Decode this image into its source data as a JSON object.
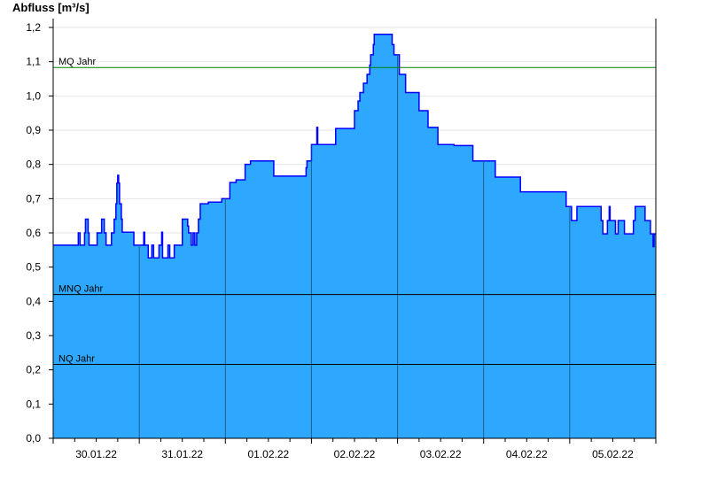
{
  "chart_data": {
    "type": "area",
    "title": "",
    "ylabel": "Abfluss [m³/s]",
    "xlabel": "",
    "ylim": [
      0,
      1.2
    ],
    "xlim": [
      "30.01.22 00:00",
      "06.02.22 00:00"
    ],
    "yticks": [
      "0,0",
      "0,1",
      "0,2",
      "0,3",
      "0,4",
      "0,5",
      "0,6",
      "0,7",
      "0,8",
      "0,9",
      "1,0",
      "1,1",
      "1,2"
    ],
    "xticks": [
      "30.01.22",
      "31.01.22",
      "01.02.22",
      "02.02.22",
      "03.02.22",
      "04.02.22",
      "05.02.22"
    ],
    "grid": true,
    "step": true,
    "colors": {
      "fill": "#2ea8ff",
      "line": "#0000ff",
      "mq": "#008000",
      "ref": "#000000",
      "dayline": "#1f5f8a"
    },
    "reference_lines": [
      {
        "label": "MQ Jahr",
        "value": 1.083,
        "color": "#008000"
      },
      {
        "label": "MNQ Jahr",
        "value": 0.42,
        "color": "#000000"
      },
      {
        "label": "NQ Jahr",
        "value": 0.216,
        "color": "#000000"
      }
    ],
    "series": [
      {
        "points": [
          [
            "30.01.22 00:00",
            0.564
          ],
          [
            "30.01.22 07:00",
            0.6
          ],
          [
            "30.01.22 07:30",
            0.564
          ],
          [
            "30.01.22 08:45",
            0.6
          ],
          [
            "30.01.22 09:00",
            0.64
          ],
          [
            "30.01.22 09:45",
            0.6
          ],
          [
            "30.01.22 10:00",
            0.564
          ],
          [
            "30.01.22 12:15",
            0.6
          ],
          [
            "30.01.22 13:30",
            0.64
          ],
          [
            "30.01.22 14:15",
            0.6
          ],
          [
            "30.01.22 14:45",
            0.564
          ],
          [
            "30.01.22 16:15",
            0.6
          ],
          [
            "30.01.22 17:00",
            0.64
          ],
          [
            "30.01.22 17:30",
            0.685
          ],
          [
            "30.01.22 17:45",
            0.745
          ],
          [
            "30.01.22 18:00",
            0.768
          ],
          [
            "30.01.22 18:15",
            0.745
          ],
          [
            "30.01.22 18:30",
            0.685
          ],
          [
            "30.01.22 19:00",
            0.64
          ],
          [
            "30.01.22 19:15",
            0.602
          ],
          [
            "30.01.22 22:30",
            0.564
          ],
          [
            "31.01.22 01:15",
            0.602
          ],
          [
            "31.01.22 01:30",
            0.564
          ],
          [
            "31.01.22 02:30",
            0.527
          ],
          [
            "31.01.22 03:30",
            0.564
          ],
          [
            "31.01.22 04:00",
            0.527
          ],
          [
            "31.01.22 05:30",
            0.564
          ],
          [
            "31.01.22 06:15",
            0.602
          ],
          [
            "31.01.22 06:30",
            0.527
          ],
          [
            "31.01.22 08:00",
            0.564
          ],
          [
            "31.01.22 08:30",
            0.527
          ],
          [
            "31.01.22 09:45",
            0.564
          ],
          [
            "31.01.22 12:00",
            0.64
          ],
          [
            "31.01.22 13:30",
            0.62
          ],
          [
            "31.01.22 13:45",
            0.6
          ],
          [
            "31.01.22 14:30",
            0.564
          ],
          [
            "31.01.22 15:00",
            0.6
          ],
          [
            "31.01.22 15:30",
            0.564
          ],
          [
            "31.01.22 16:00",
            0.6
          ],
          [
            "31.01.22 16:30",
            0.64
          ],
          [
            "31.01.22 17:00",
            0.685
          ],
          [
            "31.01.22 19:15",
            0.69
          ],
          [
            "31.01.22 23:00",
            0.7
          ],
          [
            "01.02.22 01:15",
            0.747
          ],
          [
            "01.02.22 03:00",
            0.755
          ],
          [
            "01.02.22 05:30",
            0.8
          ],
          [
            "01.02.22 07:00",
            0.81
          ],
          [
            "01.02.22 13:15",
            0.81
          ],
          [
            "01.02.22 13:30",
            0.766
          ],
          [
            "01.02.22 22:30",
            0.79
          ],
          [
            "01.02.22 22:45",
            0.81
          ],
          [
            "02.02.22 00:00",
            0.858
          ],
          [
            "02.02.22 01:30",
            0.908
          ],
          [
            "02.02.22 01:45",
            0.858
          ],
          [
            "02.02.22 06:45",
            0.905
          ],
          [
            "02.02.22 12:00",
            0.957
          ],
          [
            "02.02.22 13:00",
            0.985
          ],
          [
            "02.02.22 13:30",
            1.01
          ],
          [
            "02.02.22 14:30",
            1.037
          ],
          [
            "02.02.22 15:30",
            1.063
          ],
          [
            "02.02.22 16:15",
            1.09
          ],
          [
            "02.02.22 16:30",
            1.12
          ],
          [
            "02.02.22 17:15",
            1.15
          ],
          [
            "02.02.22 17:30",
            1.18
          ],
          [
            "02.02.22 22:30",
            1.15
          ],
          [
            "02.02.22 23:00",
            1.12
          ],
          [
            "03.02.22 00:30",
            1.063
          ],
          [
            "03.02.22 02:15",
            1.01
          ],
          [
            "03.02.22 06:00",
            0.957
          ],
          [
            "03.02.22 08:30",
            0.908
          ],
          [
            "03.02.22 11:15",
            0.858
          ],
          [
            "03.02.22 15:45",
            0.855
          ],
          [
            "03.02.22 21:00",
            0.81
          ],
          [
            "04.02.22 03:15",
            0.763
          ],
          [
            "04.02.22 10:15",
            0.72
          ],
          [
            "04.02.22 23:00",
            0.677
          ],
          [
            "05.02.22 00:30",
            0.636
          ],
          [
            "05.02.22 02:00",
            0.677
          ],
          [
            "05.02.22 08:45",
            0.636
          ],
          [
            "05.02.22 09:15",
            0.597
          ],
          [
            "05.02.22 10:30",
            0.636
          ],
          [
            "05.02.22 11:00",
            0.677
          ],
          [
            "05.02.22 11:15",
            0.636
          ],
          [
            "05.02.22 12:45",
            0.597
          ],
          [
            "05.02.22 13:30",
            0.636
          ],
          [
            "05.02.22 15:15",
            0.597
          ],
          [
            "05.02.22 17:45",
            0.636
          ],
          [
            "05.02.22 18:15",
            0.677
          ],
          [
            "05.02.22 21:00",
            0.636
          ],
          [
            "05.02.22 22:30",
            0.597
          ],
          [
            "05.02.22 23:15",
            0.56
          ],
          [
            "05.02.22 23:30",
            0.597
          ],
          [
            "06.02.22 00:00",
            0.597
          ]
        ]
      }
    ]
  }
}
